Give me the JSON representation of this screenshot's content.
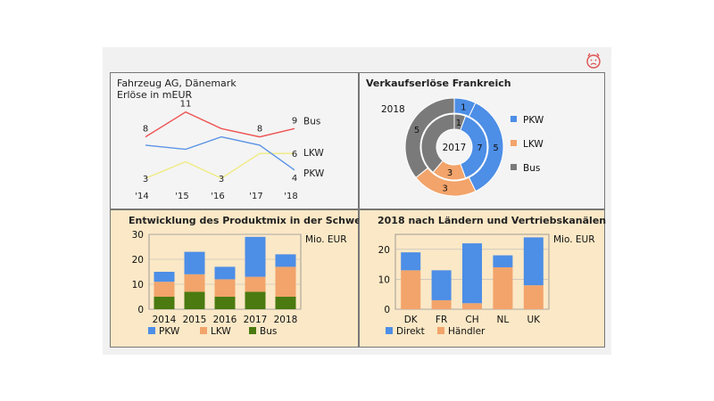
{
  "colors": {
    "pkw": "#4d8ee6",
    "lkw": "#f2a46b",
    "bus": "#4a7a10",
    "grey": "#7a7a7a",
    "line_bus": "#ee5555",
    "line_lkw": "#f0eb80",
    "line_pkw": "#5d94e6"
  },
  "icon": "frowning-face-icon",
  "chart_data": [
    {
      "type": "line",
      "title": "Fahrzeug AG, Dänemark",
      "subtitle": "Erlöse in mEUR",
      "categories": [
        "'14",
        "'15",
        "'16",
        "'17",
        "'18"
      ],
      "series": [
        {
          "name": "Bus",
          "values": [
            8,
            11,
            9,
            8,
            9
          ],
          "labels": [
            "8",
            "11",
            "",
            "8",
            "9"
          ]
        },
        {
          "name": "LKW",
          "values": [
            3,
            5,
            3,
            6,
            6
          ],
          "labels": [
            "3",
            "",
            "3",
            "",
            "6"
          ]
        },
        {
          "name": "PKW",
          "values": [
            7,
            6.5,
            8,
            7,
            4
          ],
          "labels": [
            "",
            "",
            "",
            "",
            "4"
          ]
        }
      ],
      "ylim": [
        0,
        12
      ]
    },
    {
      "type": "pie",
      "variant": "donut",
      "title": "Verkaufserlöse Frankreich",
      "rings": [
        {
          "name": "2018",
          "values": [
            1,
            5,
            3,
            5
          ],
          "colors": [
            "pkw",
            "pkw",
            "lkw",
            "grey"
          ],
          "labels": [
            "1",
            "5",
            "3",
            "5"
          ]
        },
        {
          "name": "2017",
          "values": [
            1,
            7,
            3,
            7
          ],
          "colors": [
            "grey",
            "pkw",
            "lkw",
            "grey"
          ],
          "labels": [
            "1",
            "7",
            "3",
            ""
          ]
        }
      ],
      "center_label": "2017",
      "outer_label": "2018",
      "legend": [
        "PKW",
        "LKW",
        "Bus"
      ]
    },
    {
      "type": "bar",
      "stacked": true,
      "title": "Entwicklung des Produktmix in der Schweiz",
      "unit": "Mio. EUR",
      "categories": [
        "2014",
        "2015",
        "2016",
        "2017",
        "2018"
      ],
      "series": [
        {
          "name": "Bus",
          "values": [
            5,
            7,
            5,
            7,
            5
          ]
        },
        {
          "name": "LKW",
          "values": [
            6,
            7,
            7,
            6,
            12
          ]
        },
        {
          "name": "PKW",
          "values": [
            4,
            9,
            5,
            16,
            5
          ]
        }
      ],
      "legend": [
        "PKW",
        "LKW",
        "Bus"
      ],
      "yticks": [
        0,
        10,
        20,
        30
      ],
      "ylim": [
        0,
        30
      ]
    },
    {
      "type": "bar",
      "stacked": true,
      "title": "2018 nach Ländern und Vertriebskanälen",
      "unit": "Mio. EUR",
      "categories": [
        "DK",
        "FR",
        "CH",
        "NL",
        "UK"
      ],
      "series": [
        {
          "name": "Händler",
          "values": [
            13,
            3,
            2,
            14,
            8
          ]
        },
        {
          "name": "Direkt",
          "values": [
            6,
            10,
            20,
            4,
            16
          ]
        }
      ],
      "legend": [
        "Direkt",
        "Händler"
      ],
      "yticks": [
        0,
        10,
        20
      ],
      "ylim": [
        0,
        25
      ]
    }
  ]
}
